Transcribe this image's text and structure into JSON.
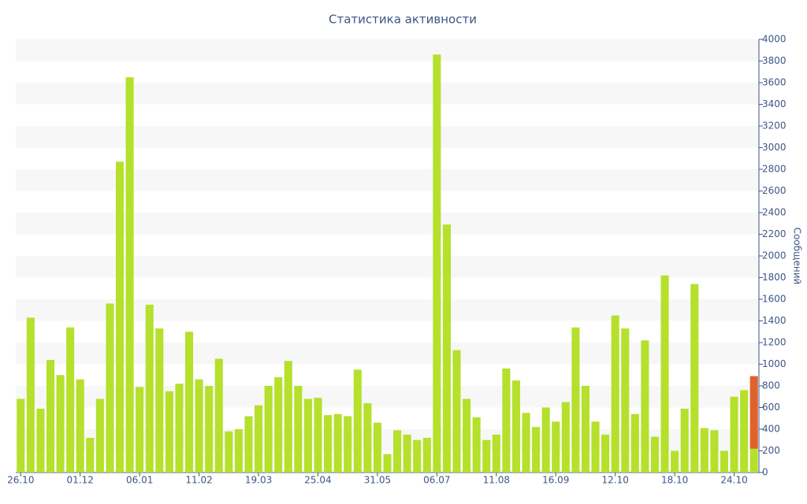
{
  "chart_data": {
    "type": "bar",
    "stacked": true,
    "title": "Статистика активности",
    "y_label": "Сообщений",
    "categories": [
      "26.10",
      null,
      null,
      null,
      null,
      null,
      "01.12",
      null,
      null,
      null,
      null,
      null,
      "06.01",
      null,
      null,
      null,
      null,
      null,
      "11.02",
      null,
      null,
      null,
      null,
      null,
      "19.03",
      null,
      null,
      null,
      null,
      null,
      "25.04",
      null,
      null,
      null,
      null,
      null,
      "31.05",
      null,
      null,
      null,
      null,
      null,
      "06.07",
      null,
      null,
      null,
      null,
      null,
      "11.08",
      null,
      null,
      null,
      null,
      null,
      "16.09",
      null,
      null,
      null,
      null,
      null,
      "12.10",
      null,
      null,
      null,
      null,
      null,
      "18.10",
      null,
      null,
      null,
      null,
      null,
      "24.10",
      null,
      null
    ],
    "series": [
      {
        "color": "#b5e02b",
        "values": [
          680,
          1430,
          590,
          1040,
          900,
          1340,
          860,
          320,
          680,
          1560,
          2870,
          3650,
          790,
          1550,
          1330,
          750,
          820,
          1300,
          860,
          800,
          1050,
          380,
          400,
          520,
          620,
          800,
          880,
          1030,
          800,
          680,
          690,
          530,
          540,
          520,
          950,
          640,
          460,
          170,
          390,
          350,
          300,
          320,
          3860,
          2290,
          1130,
          680,
          510,
          300,
          350,
          960,
          850,
          550,
          420,
          600,
          470,
          650,
          1340,
          800,
          470,
          350,
          1450,
          1330,
          540,
          1220,
          330,
          1820,
          200,
          590,
          1740,
          410,
          390,
          200,
          700,
          760,
          220
        ]
      },
      {
        "color": "#e0622b",
        "values": [
          null,
          null,
          null,
          null,
          null,
          null,
          null,
          null,
          null,
          null,
          null,
          null,
          null,
          null,
          null,
          null,
          null,
          null,
          null,
          null,
          null,
          null,
          null,
          null,
          null,
          null,
          null,
          null,
          null,
          null,
          null,
          null,
          null,
          null,
          null,
          null,
          null,
          null,
          null,
          null,
          null,
          null,
          null,
          null,
          null,
          null,
          null,
          null,
          null,
          null,
          null,
          null,
          null,
          null,
          null,
          null,
          null,
          null,
          null,
          null,
          null,
          null,
          null,
          null,
          null,
          null,
          null,
          null,
          null,
          null,
          null,
          null,
          null,
          null,
          670
        ]
      }
    ],
    "ylim": [
      0,
      4000
    ],
    "yticks": [
      0,
      200,
      400,
      600,
      800,
      1000,
      1200,
      1400,
      1600,
      1800,
      2000,
      2200,
      2400,
      2600,
      2800,
      3000,
      3200,
      3400,
      3600,
      3800,
      4000
    ],
    "grid": true,
    "y_axis_side": "right"
  }
}
